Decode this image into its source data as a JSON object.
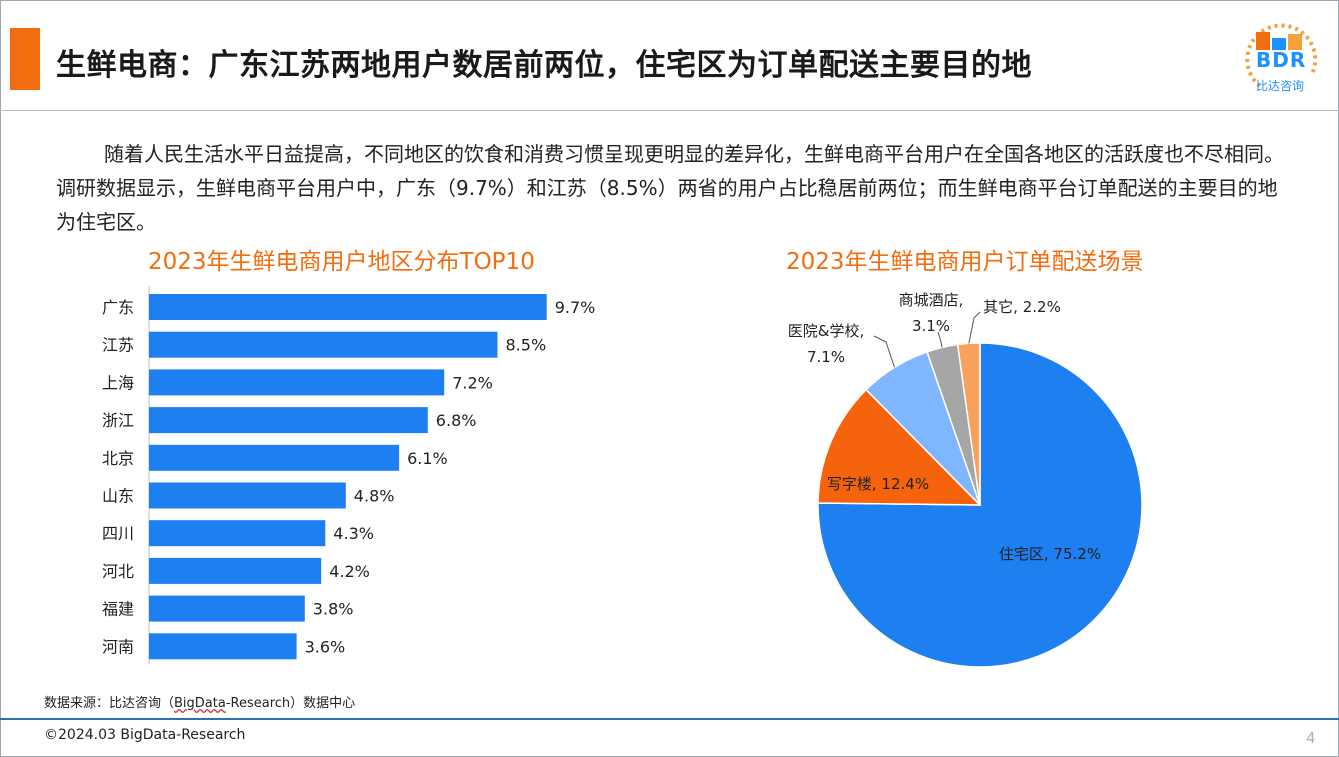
{
  "header": {
    "title": "生鲜电商：广东江苏两地用户数居前两位，住宅区为订单配送主要目的地",
    "logo_text": "BDR",
    "logo_subtext": "比达咨询"
  },
  "intro": {
    "text": "随着人民生活水平日益提高，不同地区的饮食和消费习惯呈现更明显的差异化，生鲜电商平台用户在全国各地区的活跃度也不尽相同。调研数据显示，生鲜电商平台用户中，广东（9.7%）和江苏（8.5%）两省的用户占比稳居前两位；而生鲜电商平台订单配送的主要目的地为住宅区。"
  },
  "colors": {
    "accent": "#f26d0f",
    "bar": "#1e7ff0",
    "footer_rule": "#2f6fb5"
  },
  "chart_data": [
    {
      "type": "bar",
      "orientation": "horizontal",
      "title": "2023年生鲜电商用户地区分布TOP10",
      "categories": [
        "广东",
        "江苏",
        "上海",
        "浙江",
        "北京",
        "山东",
        "四川",
        "河北",
        "福建",
        "河南"
      ],
      "values": [
        9.7,
        8.5,
        7.2,
        6.8,
        6.1,
        4.8,
        4.3,
        4.2,
        3.8,
        3.6
      ],
      "value_suffix": "%",
      "xlim": [
        0,
        10
      ]
    },
    {
      "type": "pie",
      "title": "2023年生鲜电商用户订单配送场景",
      "slices": [
        {
          "label": "住宅区",
          "value": 75.2,
          "color": "#1e7ff0"
        },
        {
          "label": "写字楼",
          "value": 12.4,
          "color": "#f5640c"
        },
        {
          "label": "医院&学校",
          "value": 7.1,
          "color": "#7fb6ff"
        },
        {
          "label": "商城酒店",
          "value": 3.1,
          "color": "#a6a6a6"
        },
        {
          "label": "其它",
          "value": 2.2,
          "color": "#f9a05a"
        }
      ]
    }
  ],
  "footer": {
    "source_prefix": "数据来源：比达咨询（",
    "source_underlined": "BigData",
    "source_suffix": "-Research）数据中心",
    "copyright": "©2024.03 BigData-Research",
    "page_number": "4"
  }
}
